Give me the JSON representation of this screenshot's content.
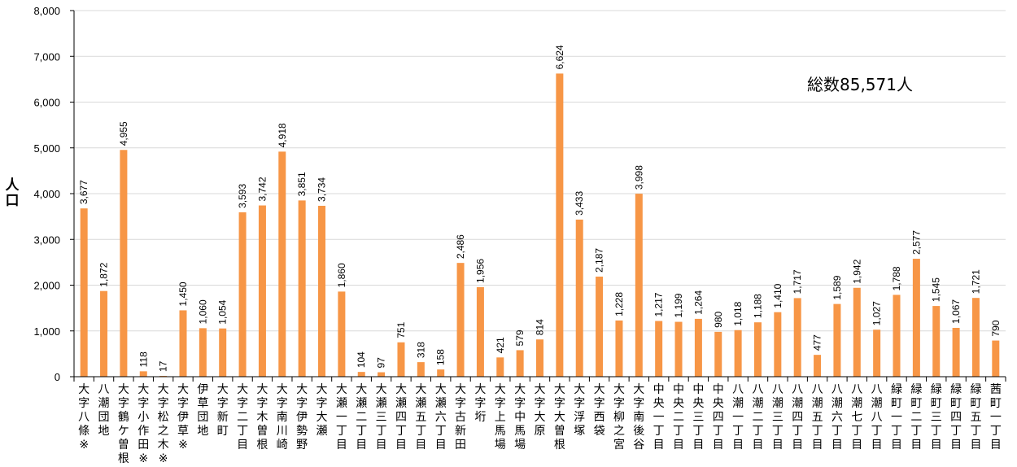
{
  "chart_data": {
    "type": "bar",
    "title": "",
    "xlabel": "",
    "ylabel": "人口",
    "ylim": [
      0,
      8000
    ],
    "yticks": [
      0,
      1000,
      2000,
      3000,
      4000,
      5000,
      6000,
      7000,
      8000
    ],
    "ytick_labels": [
      "0",
      "1,000",
      "2,000",
      "3,000",
      "4,000",
      "5,000",
      "6,000",
      "7,000",
      "8,000"
    ],
    "grid": true,
    "bar_color": "#F79646",
    "annotation": "総数85,571人",
    "categories": [
      "大字八條※",
      "八潮団地",
      "大字鶴ケ曽根",
      "大字小作田※",
      "大字松之木※",
      "大字伊草※",
      "伊草団地",
      "大字新町",
      "大字二丁目",
      "大字木曽根",
      "大字南川崎",
      "大字伊勢野",
      "大字大瀬",
      "大瀬一丁目",
      "大瀬二丁目",
      "大瀬三丁目",
      "大瀬四丁目",
      "大瀬五丁目",
      "大瀬六丁目",
      "大字古新田",
      "大字垳",
      "大字上馬場",
      "大字中馬場",
      "大字大原",
      "大字大曽根",
      "大字浮塚",
      "大字西袋",
      "大字柳之宮",
      "大字南後谷",
      "中央一丁目",
      "中央二丁目",
      "中央三丁目",
      "中央四丁目",
      "八潮一丁目",
      "八潮二丁目",
      "八潮三丁目",
      "八潮四丁目",
      "八潮五丁目",
      "八潮六丁目",
      "八潮七丁目",
      "八潮八丁目",
      "緑町一丁目",
      "緑町二丁目",
      "緑町三丁目",
      "緑町四丁目",
      "緑町五丁目",
      "茜町一丁目"
    ],
    "values": [
      3677,
      1872,
      4955,
      118,
      17,
      1450,
      1060,
      1054,
      3593,
      3742,
      4918,
      3851,
      3734,
      1860,
      104,
      97,
      751,
      318,
      158,
      2486,
      1956,
      421,
      579,
      814,
      6624,
      3433,
      2187,
      1228,
      3998,
      1217,
      1199,
      1264,
      980,
      1018,
      1188,
      1410,
      1717,
      477,
      1589,
      1942,
      1027,
      1788,
      2577,
      1545,
      1067,
      1721,
      790
    ],
    "value_labels": [
      "3,677",
      "1,872",
      "4,955",
      "118",
      "17",
      "1,450",
      "1,060",
      "1,054",
      "3,593",
      "3,742",
      "4,918",
      "3,851",
      "3,734",
      "1,860",
      "104",
      "97",
      "751",
      "318",
      "158",
      "2,486",
      "1,956",
      "421",
      "579",
      "814",
      "6,624",
      "3,433",
      "2,187",
      "1,228",
      "3,998",
      "1,217",
      "1,199",
      "1,264",
      "980",
      "1,018",
      "1,188",
      "1,410",
      "1,717",
      "477",
      "1,589",
      "1,942",
      "1,027",
      "1,788",
      "2,577",
      "1,545",
      "1,067",
      "1,721",
      "790"
    ]
  }
}
